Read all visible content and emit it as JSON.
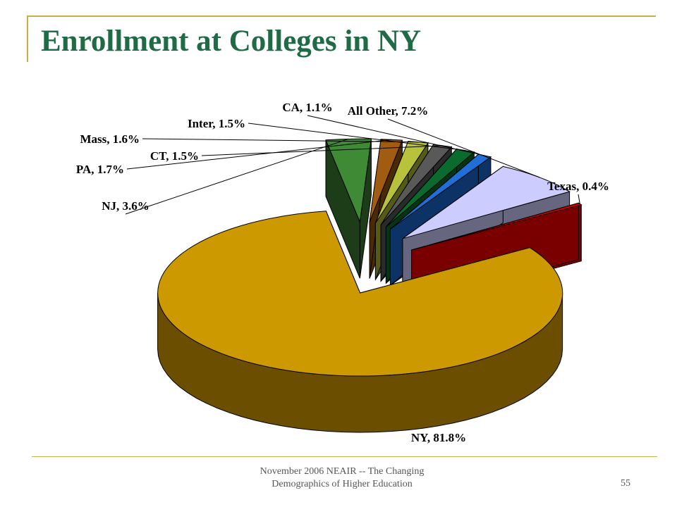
{
  "slide": {
    "title": "Enrollment at Colleges in NY",
    "footer_line1": "November 2006 NEAIR -- The Changing",
    "footer_line2": "Demographics of Higher Education",
    "page_number": "55",
    "accent_color": "#c9b04a",
    "title_color": "#1e6b45"
  },
  "chart_data": {
    "type": "pie",
    "style": "3d-exploded",
    "title": "",
    "slices": [
      {
        "name": "NY",
        "value": 81.8,
        "label": "NY, 81.8%",
        "color": "#cc9900",
        "side_color": "#6b4e00"
      },
      {
        "name": "NJ",
        "value": 3.6,
        "label": "NJ, 3.6%",
        "color": "#3f8a35",
        "side_color": "#1c3d18"
      },
      {
        "name": "PA",
        "value": 1.7,
        "label": "PA, 1.7%",
        "color": "#a05c10",
        "side_color": "#4a2a05"
      },
      {
        "name": "Mass",
        "value": 1.6,
        "label": "Mass, 1.6%",
        "color": "#b8c23a",
        "side_color": "#555a18"
      },
      {
        "name": "CT",
        "value": 1.5,
        "label": "CT, 1.5%",
        "color": "#595959",
        "side_color": "#2a2a2a"
      },
      {
        "name": "Inter",
        "value": 1.5,
        "label": "Inter, 1.5%",
        "color": "#0b6b2e",
        "side_color": "#053415"
      },
      {
        "name": "CA",
        "value": 1.1,
        "label": "CA, 1.1%",
        "color": "#1f6fd6",
        "side_color": "#0c3266"
      },
      {
        "name": "All Other",
        "value": 7.2,
        "label": "All Other, 7.2%",
        "color": "#ccccff",
        "side_color": "#66667f"
      },
      {
        "name": "Texas",
        "value": 0.4,
        "label": "Texas, 0.4%",
        "color": "#cc0000",
        "side_color": "#7a0000"
      }
    ]
  }
}
